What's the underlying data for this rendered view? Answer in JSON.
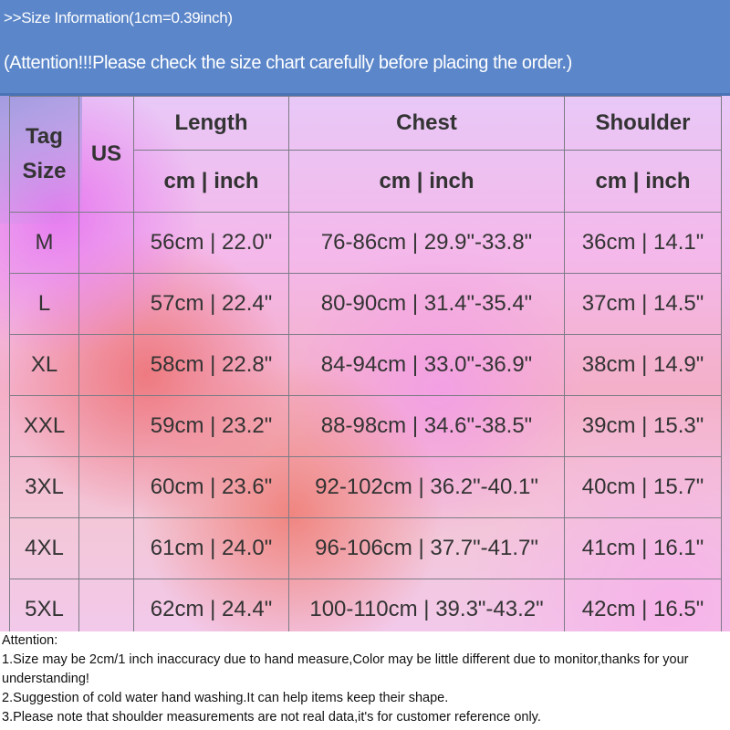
{
  "banner": {
    "size_info": ">>Size Information(1cm=0.39inch)",
    "attention": "(Attention!!!Please check the size chart carefully before placing the order.)"
  },
  "table": {
    "headers": {
      "tag_size": "Tag Size",
      "us": "US",
      "length": "Length",
      "chest": "Chest",
      "shoulder": "Shoulder",
      "unit": "cm | inch"
    },
    "rows": [
      {
        "tag": "M",
        "us": "",
        "length": "56cm | 22.0\"",
        "chest": "76-86cm | 29.9\"-33.8\"",
        "shoulder": "36cm | 14.1\""
      },
      {
        "tag": "L",
        "us": "",
        "length": "57cm | 22.4\"",
        "chest": "80-90cm | 31.4\"-35.4\"",
        "shoulder": "37cm | 14.5\""
      },
      {
        "tag": "XL",
        "us": "",
        "length": "58cm | 22.8\"",
        "chest": "84-94cm | 33.0\"-36.9\"",
        "shoulder": "38cm | 14.9\""
      },
      {
        "tag": "XXL",
        "us": "",
        "length": "59cm | 23.2\"",
        "chest": "88-98cm | 34.6\"-38.5\"",
        "shoulder": "39cm | 15.3\""
      },
      {
        "tag": "3XL",
        "us": "",
        "length": "60cm | 23.6\"",
        "chest": "92-102cm | 36.2\"-40.1\"",
        "shoulder": "40cm | 15.7\""
      },
      {
        "tag": "4XL",
        "us": "",
        "length": "61cm | 24.0\"",
        "chest": "96-106cm | 37.7\"-41.7\"",
        "shoulder": "41cm | 16.1\""
      },
      {
        "tag": "5XL",
        "us": "",
        "length": "62cm | 24.4\"",
        "chest": "100-110cm | 39.3\"-43.2\"",
        "shoulder": "42cm | 16.5\""
      }
    ]
  },
  "notes": {
    "heading": "Attention:",
    "items": [
      "1.Size may be 2cm/1 inch inaccuracy due to hand measure,Color may be little different due to monitor,thanks for your understanding!",
      "2.Suggestion of cold water hand washing.It can help items keep their shape.",
      "3.Please note that shoulder measurements are not real data,it's  for customer reference only."
    ]
  },
  "colors": {
    "banner_bg": "#5b86c9",
    "banner_text": "#ffffff",
    "table_border": "#7c7c86",
    "table_text": "#333333"
  }
}
